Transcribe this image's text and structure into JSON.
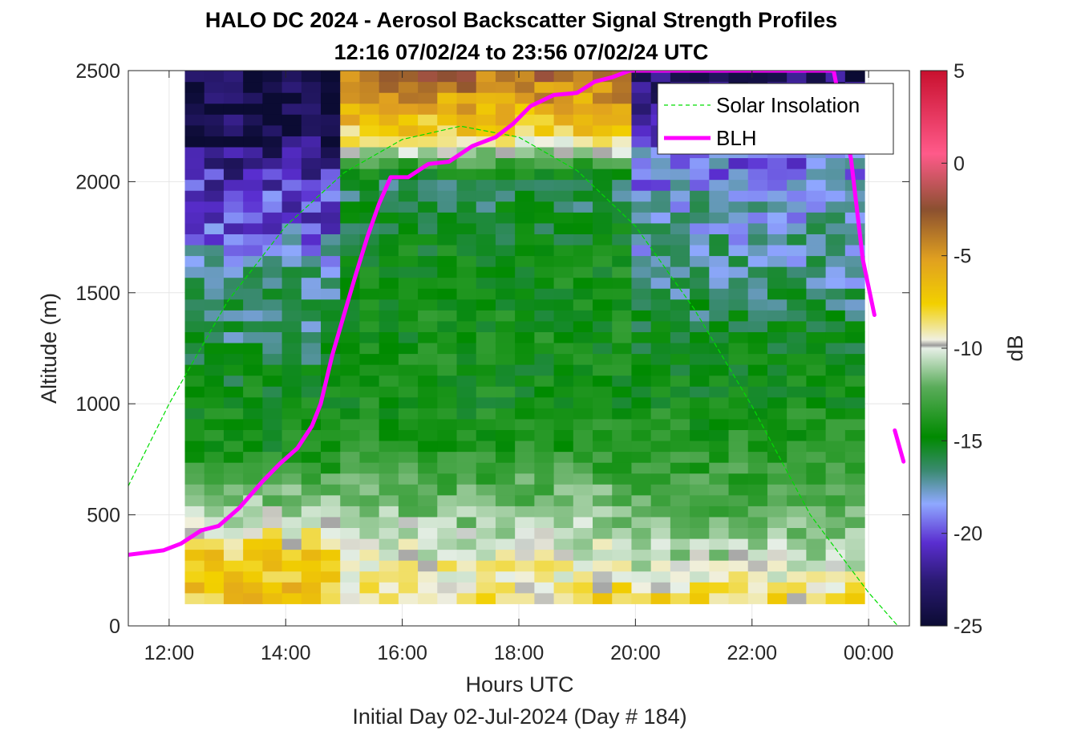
{
  "chart_data": {
    "type": "heatmap",
    "title": "HALO DC 2024 - Aerosol Backscatter Signal Strength Profiles",
    "subtitle": "12:16 07/02/24 to 23:56 07/02/24  UTC",
    "xlabel": "Hours UTC",
    "footer": "Initial Day 02-Jul-2024 (Day # 184)",
    "ylabel": "Altitude (m)",
    "colorbar_label": "dB",
    "xlim_hours": [
      11.3,
      24.7
    ],
    "ylim": [
      0,
      2500
    ],
    "x_ticks": [
      {
        "value": 12,
        "label": "12:00"
      },
      {
        "value": 14,
        "label": "14:00"
      },
      {
        "value": 16,
        "label": "16:00"
      },
      {
        "value": 18,
        "label": "18:00"
      },
      {
        "value": 20,
        "label": "20:00"
      },
      {
        "value": 22,
        "label": "22:00"
      },
      {
        "value": 24,
        "label": "00:00"
      }
    ],
    "y_ticks": [
      {
        "value": 0,
        "label": "0"
      },
      {
        "value": 500,
        "label": "500"
      },
      {
        "value": 1000,
        "label": "1000"
      },
      {
        "value": 1500,
        "label": "1500"
      },
      {
        "value": 2000,
        "label": "2000"
      },
      {
        "value": 2500,
        "label": "2500"
      }
    ],
    "colorbar_ticks": [
      {
        "value": 5,
        "label": "5"
      },
      {
        "value": 0,
        "label": "0"
      },
      {
        "value": -5,
        "label": "-5"
      },
      {
        "value": -10,
        "label": "-10"
      },
      {
        "value": -15,
        "label": "-15"
      },
      {
        "value": -20,
        "label": "-20"
      },
      {
        "value": -25,
        "label": "-25"
      }
    ],
    "clim": [
      -25,
      5
    ],
    "grid": true,
    "legend_placement": "top-right",
    "heatmap": {
      "x_start_hours": 12.27,
      "x_end_hours": 23.93,
      "n_columns": 35,
      "y_start_m": 100,
      "y_end_m": 2500,
      "n_rows": 49,
      "value_units": "dB",
      "approximate_profile_dB": {
        "altitudes_m": [
          100,
          300,
          500,
          800,
          1000,
          1300,
          1600,
          1800,
          2000,
          2200,
          2500
        ],
        "early_12_to_15h": [
          -7,
          -7,
          -11,
          -16,
          -16,
          -18,
          -19,
          -21,
          -22,
          -24,
          -25
        ],
        "mid_15_to_20h": [
          -8,
          -10,
          -12,
          -15,
          -16,
          -16,
          -16,
          -17,
          -18,
          -8,
          -3
        ],
        "late_20_to_24h": [
          -8,
          -11,
          -13,
          -15,
          -16,
          -17,
          -19,
          -19,
          -20,
          -21,
          -24
        ]
      }
    },
    "series": [
      {
        "name": "Solar Insolation",
        "color": "#00dd00",
        "style": "dashed",
        "x": [
          11.3,
          12,
          13,
          14,
          15,
          16,
          17,
          18,
          19,
          20,
          21,
          22,
          23,
          24,
          24.5
        ],
        "y": [
          630,
          1000,
          1460,
          1800,
          2040,
          2190,
          2250,
          2200,
          2050,
          1800,
          1430,
          990,
          500,
          150,
          0
        ]
      },
      {
        "name": "BLH",
        "color": "#ff00ff",
        "style": "solid",
        "x": [
          11.3,
          11.6,
          11.9,
          12.2,
          12.55,
          12.85,
          13.2,
          13.6,
          13.9,
          14.2,
          14.45,
          14.6,
          14.8,
          15.0,
          15.2,
          15.4,
          15.6,
          15.8,
          16.1,
          16.45,
          16.8,
          17.2,
          17.6,
          17.9,
          18.2,
          18.6,
          19.0,
          19.3,
          19.6,
          19.9,
          20.2,
          20.6,
          21.0,
          21.4,
          21.8,
          22.2,
          22.6,
          23.0,
          23.4,
          23.7,
          23.9,
          24.1
        ],
        "y": [
          320,
          330,
          340,
          370,
          430,
          450,
          530,
          650,
          730,
          800,
          900,
          1000,
          1220,
          1400,
          1580,
          1750,
          1900,
          2020,
          2020,
          2080,
          2090,
          2160,
          2200,
          2260,
          2340,
          2390,
          2400,
          2450,
          2470,
          2500,
          2500,
          2500,
          2500,
          2500,
          2500,
          2500,
          2500,
          2500,
          2500,
          2100,
          1650,
          1400
        ],
        "extra_segment": {
          "x": [
            24.45,
            24.6
          ],
          "y": [
            880,
            740
          ]
        }
      }
    ]
  }
}
